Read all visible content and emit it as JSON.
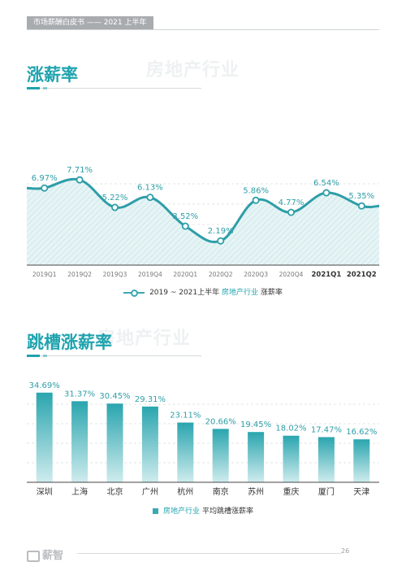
{
  "header": {
    "tag": "市场薪酬白皮书 —— 2021 上半年"
  },
  "section1": {
    "title": "涨薪率",
    "ghost": "房地产行业",
    "legend": {
      "prefix": "2019 ~ 2021上半年",
      "highlight": "房地产行业",
      "suffix": "涨薪率"
    }
  },
  "section2": {
    "title": "跳槽涨薪率",
    "ghost": "房地产行业",
    "legend": {
      "highlight": "房地产行业",
      "suffix": "平均跳槽涨薪率"
    }
  },
  "footer": {
    "logo": "薪智",
    "page": "26"
  },
  "colors": {
    "accent": "#1fa3ae",
    "line": "#2e9ea8",
    "bar_top": "#2aa5ae",
    "bar_bottom": "#cfecee"
  },
  "chart_data": [
    {
      "type": "line",
      "title": "",
      "categories": [
        "2019Q1",
        "2019Q2",
        "2019Q3",
        "2019Q4",
        "2020Q1",
        "2020Q2",
        "2020Q3",
        "2020Q4",
        "2021Q1",
        "2021Q2"
      ],
      "series": [
        {
          "name": "",
          "values": [
            6.97,
            7.71,
            5.22,
            6.13,
            3.52,
            2.19,
            5.86,
            4.77,
            6.54,
            5.35
          ],
          "labels": [
            "6.97%",
            "7.71%",
            "5.22%",
            "6.13%",
            "3.52%",
            "2.19%",
            "5.86%",
            "4.77%",
            "6.54%",
            "5.35%"
          ]
        }
      ],
      "bold_categories": [
        "2021Q1",
        "2021Q2"
      ],
      "ylim": [
        0,
        10
      ],
      "grid": true,
      "legend": "bottom"
    },
    {
      "type": "bar",
      "title": "",
      "categories": [
        "深圳",
        "上海",
        "北京",
        "广州",
        "杭州",
        "南京",
        "苏州",
        "重庆",
        "厦门",
        "天津"
      ],
      "series": [
        {
          "name": "",
          "values": [
            34.69,
            31.37,
            30.45,
            29.31,
            23.11,
            20.66,
            19.45,
            18.02,
            17.47,
            16.62
          ],
          "labels": [
            "34.69%",
            "31.37%",
            "30.45%",
            "29.31%",
            "23.11%",
            "20.66%",
            "19.45%",
            "18.02%",
            "17.47%",
            "16.62%"
          ]
        }
      ],
      "ylim": [
        0,
        45
      ],
      "grid": true,
      "legend": "bottom"
    }
  ]
}
